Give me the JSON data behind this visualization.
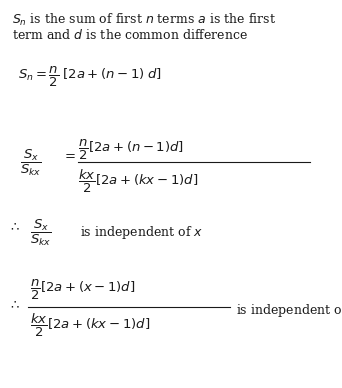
{
  "background_color": "#ffffff",
  "figsize": [
    3.42,
    3.88
  ],
  "dpi": 100,
  "text_color": "#1a1a1a",
  "fs_body": 9.0,
  "fs_math": 9.5
}
